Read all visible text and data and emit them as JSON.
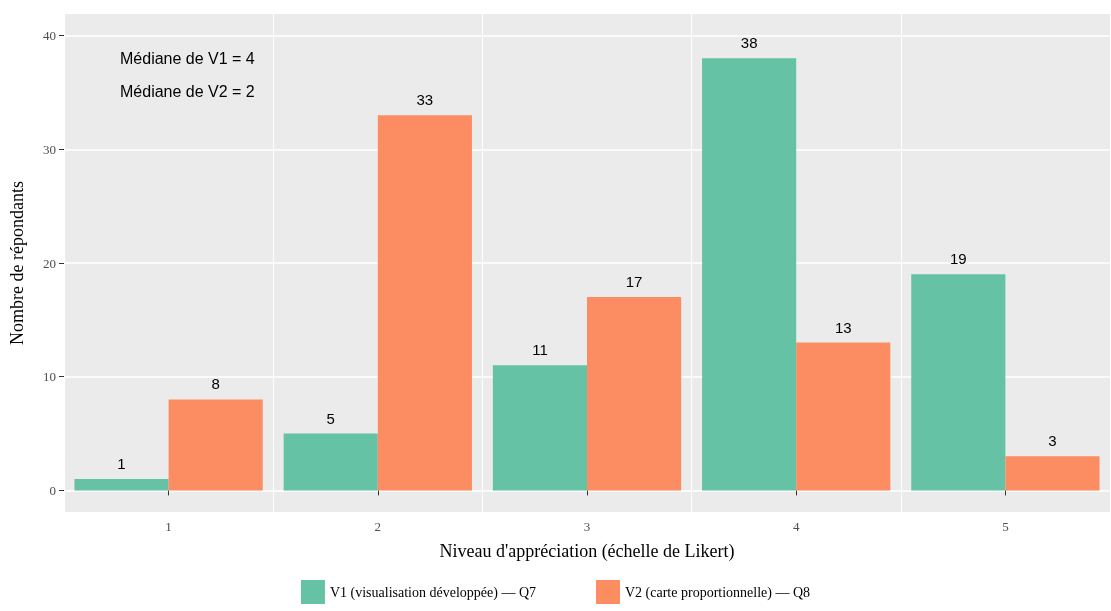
{
  "chart_data": {
    "type": "bar",
    "xlabel": "Niveau d'appréciation (échelle de Likert)",
    "ylabel": "Nombre de répondants",
    "categories": [
      "1",
      "2",
      "3",
      "4",
      "5"
    ],
    "series": [
      {
        "name": "V1 (visualisation développée) — Q7",
        "color": "#66c2a5",
        "values": [
          1,
          5,
          11,
          38,
          19
        ]
      },
      {
        "name": "V2 (carte proportionnelle) — Q8",
        "color": "#fc8d62",
        "values": [
          8,
          33,
          17,
          13,
          3
        ]
      }
    ],
    "ylim": [
      -1.9,
      41.9
    ],
    "yticks": [
      0,
      10,
      20,
      30,
      40
    ],
    "grid": true,
    "legend": "bottom",
    "data_labels": true,
    "annotations": [
      "Médiane de V1 = 4",
      "Médiane de V2 = 2"
    ]
  }
}
